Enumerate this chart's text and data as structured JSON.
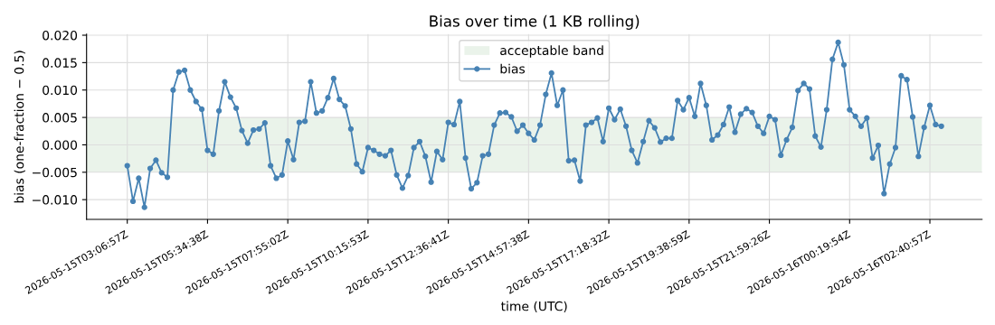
{
  "chart_data": {
    "type": "line",
    "title": "Bias over time (1 KB rolling)",
    "xlabel": "time (UTC)",
    "ylabel": "bias (one-fraction − 0.5)",
    "categories": [
      "2026-05-15T03:06:57Z",
      null,
      null,
      null,
      null,
      null,
      null,
      null,
      null,
      null,
      null,
      null,
      null,
      null,
      "2026-05-15T05:34:38Z",
      null,
      null,
      null,
      null,
      null,
      null,
      null,
      null,
      null,
      null,
      null,
      null,
      null,
      "2026-05-15T07:55:02Z",
      null,
      null,
      null,
      null,
      null,
      null,
      null,
      null,
      null,
      null,
      null,
      null,
      null,
      "2026-05-15T10:15:53Z",
      null,
      null,
      null,
      null,
      null,
      null,
      null,
      null,
      null,
      null,
      null,
      null,
      null,
      "2026-05-15T12:36:41Z",
      null,
      null,
      null,
      null,
      null,
      null,
      null,
      null,
      null,
      null,
      null,
      null,
      null,
      "2026-05-15T14:57:38Z",
      null,
      null,
      null,
      null,
      null,
      null,
      null,
      null,
      null,
      null,
      null,
      null,
      null,
      "2026-05-15T17:18:32Z",
      null,
      null,
      null,
      null,
      null,
      null,
      null,
      null,
      null,
      null,
      null,
      null,
      null,
      "2026-05-15T19:38:59Z",
      null,
      null,
      null,
      null,
      null,
      null,
      null,
      null,
      null,
      null,
      null,
      null,
      null,
      "2026-05-15T21:59:26Z",
      null,
      null,
      null,
      null,
      null,
      null,
      null,
      null,
      null,
      null,
      null,
      null,
      null,
      "2026-05-16T00:19:54Z",
      null,
      null,
      null,
      null,
      null,
      null,
      null,
      null,
      null,
      null,
      null,
      null,
      null,
      "2026-05-16T02:40:57Z",
      null,
      null
    ],
    "ylim": [
      -0.0136,
      0.0202
    ],
    "yticks": [
      {
        "value": -0.01,
        "label": "−0.010"
      },
      {
        "value": -0.005,
        "label": "−0.005"
      },
      {
        "value": 0,
        "label": "0.000"
      },
      {
        "value": 0.005,
        "label": "0.005"
      },
      {
        "value": 0.01,
        "label": "0.010"
      },
      {
        "value": 0.015,
        "label": "0.015"
      },
      {
        "value": 0.02,
        "label": "0.020"
      }
    ],
    "grid": true,
    "legend": "top",
    "marker": "circle",
    "line_style": "solid",
    "bands": [
      {
        "axis": "y",
        "from": -0.005,
        "to": 0.005,
        "label": "acceptable band",
        "color": "#eaf3ea"
      }
    ],
    "series": [
      {
        "name": "bias",
        "color": "#4682b4",
        "values": [
          -0.0038,
          -0.0103,
          -0.0061,
          -0.0114,
          -0.0043,
          -0.0028,
          -0.0051,
          -0.0059,
          0.01,
          0.0133,
          0.0136,
          0.01,
          0.0079,
          0.0065,
          -0.001,
          -0.0017,
          0.0062,
          0.0115,
          0.0087,
          0.0067,
          0.0026,
          0.0003,
          0.0027,
          0.0029,
          0.004,
          -0.0038,
          -0.0061,
          -0.0055,
          0.0007,
          -0.0027,
          0.0041,
          0.0043,
          0.0115,
          0.0058,
          0.0062,
          0.0086,
          0.0121,
          0.0083,
          0.0071,
          0.0029,
          -0.0035,
          -0.0049,
          -0.0005,
          -0.001,
          -0.0017,
          -0.002,
          -0.001,
          -0.0055,
          -0.0079,
          -0.0056,
          -0.0005,
          0.0006,
          -0.0021,
          -0.0068,
          -0.0012,
          -0.0027,
          0.0041,
          0.0037,
          0.0079,
          -0.0024,
          -0.008,
          -0.0069,
          -0.002,
          -0.0017,
          0.0036,
          0.0058,
          0.0059,
          0.0051,
          0.0025,
          0.0036,
          0.0021,
          0.0009,
          0.0036,
          0.0092,
          0.0131,
          0.0072,
          0.01,
          -0.0029,
          -0.0028,
          -0.0066,
          0.0036,
          0.0041,
          0.0049,
          0.0006,
          0.0067,
          0.0046,
          0.0065,
          0.0034,
          -0.001,
          -0.0033,
          0.0006,
          0.0044,
          0.0031,
          0.0005,
          0.0012,
          0.0012,
          0.0081,
          0.0064,
          0.0086,
          0.0052,
          0.0112,
          0.0072,
          0.0009,
          0.0018,
          0.0037,
          0.0069,
          0.0023,
          0.0056,
          0.0066,
          0.0059,
          0.0034,
          0.0021,
          0.0052,
          0.0046,
          -0.0019,
          0.0009,
          0.0032,
          0.0099,
          0.0112,
          0.0102,
          0.0016,
          -0.0004,
          0.0064,
          0.0156,
          0.0187,
          0.0146,
          0.0064,
          0.0052,
          0.0034,
          0.0049,
          -0.0024,
          -0.0001,
          -0.0089,
          -0.0035,
          -0.0005,
          0.0126,
          0.0119,
          0.0051,
          -0.0021,
          0.0032,
          0.0072,
          0.0037,
          0.0034
        ]
      }
    ]
  }
}
